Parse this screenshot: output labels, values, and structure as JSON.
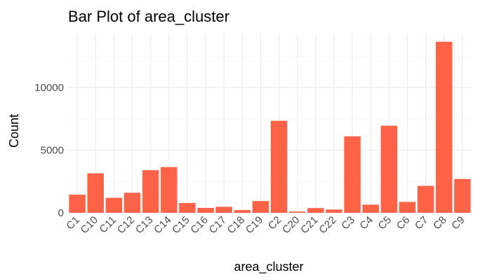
{
  "chart_data": {
    "type": "bar",
    "title": "Bar Plot of area_cluster",
    "xlabel": "area_cluster",
    "ylabel": "Count",
    "categories": [
      "C1",
      "C10",
      "C11",
      "C12",
      "C13",
      "C14",
      "C15",
      "C16",
      "C17",
      "C18",
      "C19",
      "C2",
      "C20",
      "C21",
      "C22",
      "C3",
      "C4",
      "C5",
      "C6",
      "C7",
      "C8",
      "C9"
    ],
    "values": [
      1450,
      3150,
      1200,
      1600,
      3400,
      3650,
      780,
      390,
      480,
      220,
      940,
      7340,
      100,
      380,
      260,
      6100,
      650,
      6950,
      870,
      2150,
      13650,
      2700
    ],
    "ylim": [
      0,
      14300
    ],
    "yticks": [
      0,
      5000,
      10000
    ],
    "grid": true,
    "legend": "none",
    "bar_color": "#ff6347"
  }
}
